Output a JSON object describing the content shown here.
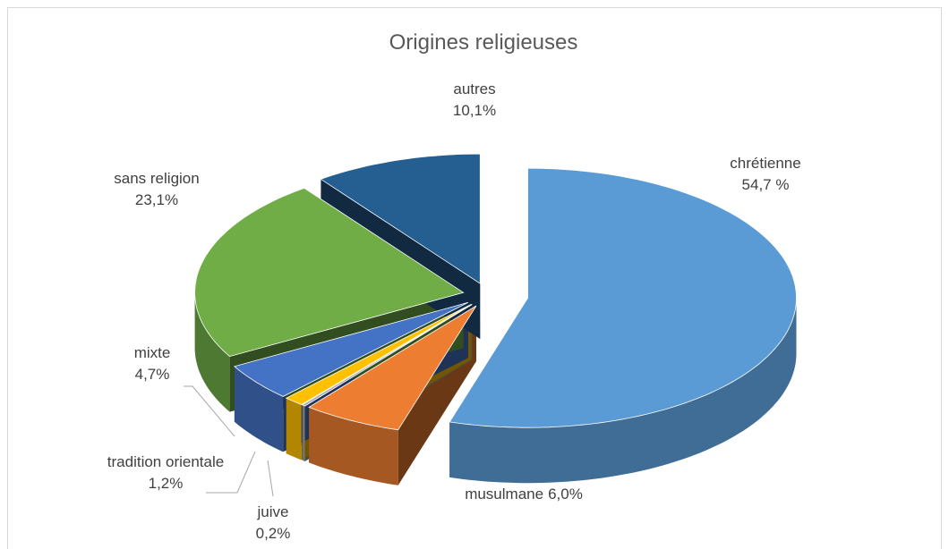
{
  "chart_data": {
    "type": "pie",
    "title": "Origines religieuses",
    "categories": [
      "chrétienne",
      "musulmane",
      "juive",
      "tradition orientale",
      "mixte",
      "sans religion",
      "autres"
    ],
    "values": [
      54.7,
      6.0,
      0.2,
      1.2,
      4.7,
      23.1,
      10.1
    ],
    "value_labels": [
      "54,7 %",
      "6,0%",
      "0,2%",
      "1,2%",
      "4,7%",
      "23,1%",
      "10,1%"
    ],
    "colors": [
      "#5b9bd5",
      "#ed7d31",
      "#a5a5a5",
      "#ffc000",
      "#4472c4",
      "#70ad47",
      "#255e91"
    ]
  }
}
